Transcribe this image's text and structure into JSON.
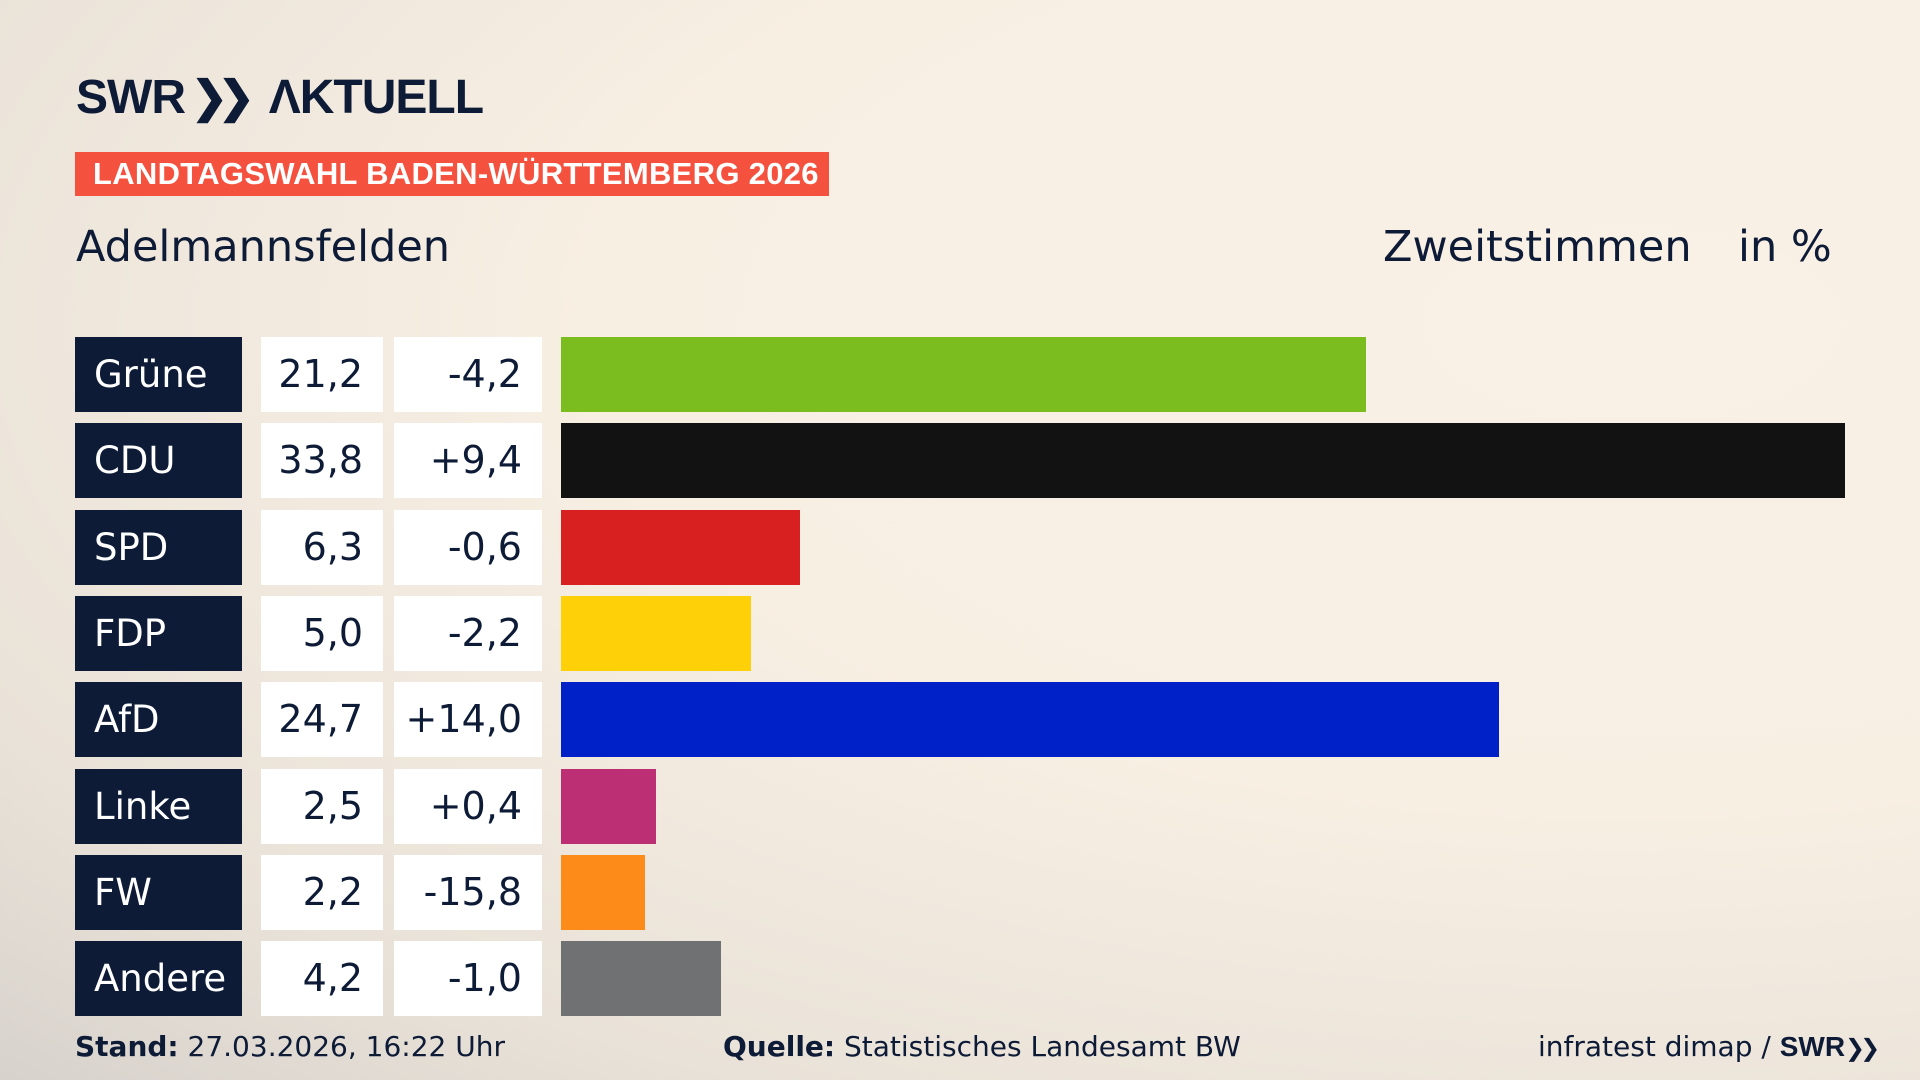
{
  "header": {
    "logo": "SWR AKTUELL",
    "banner": "LANDTAGSWAHL BADEN-WÜRTTEMBERG 2026",
    "region": "Adelmannsfelden",
    "metric": "Zweitstimmen",
    "unit": "in %"
  },
  "chart_data": {
    "type": "bar",
    "orientation": "horizontal",
    "categories": [
      "Grüne",
      "CDU",
      "SPD",
      "FDP",
      "AfD",
      "Linke",
      "FW",
      "Andere"
    ],
    "values": [
      21.2,
      33.8,
      6.3,
      5.0,
      24.7,
      2.5,
      2.2,
      4.2
    ],
    "values_label": [
      "21,2",
      "33,8",
      "6,3",
      "5,0",
      "24,7",
      "2,5",
      "2,2",
      "4,2"
    ],
    "changes": [
      "-4,2",
      "+9,4",
      "-0,6",
      "-2,2",
      "+14,0",
      "+0,4",
      "-15,8",
      "-1,0"
    ],
    "colors": [
      "#7bbd1e",
      "#121212",
      "#d7201f",
      "#fdd008",
      "#0021c8",
      "#bc2f74",
      "#fd8b19",
      "#707173"
    ],
    "title": "Zweitstimmen",
    "ylabel": "in %"
  },
  "footer": {
    "stand_label": "Stand:",
    "stand": "27.03.2026, 16:22 Uhr",
    "source_label": "Quelle:",
    "source": "Statistisches Landesamt BW",
    "credit": "infratest dimap / ",
    "credit_logo": "SWR"
  }
}
